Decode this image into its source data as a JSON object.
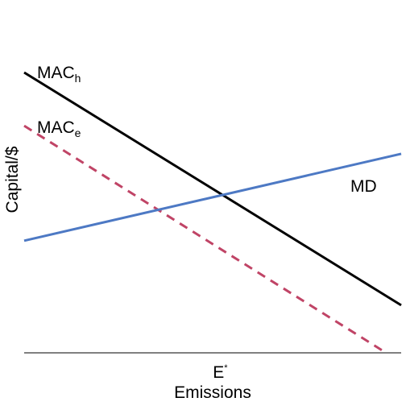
{
  "chart_data": {
    "type": "line",
    "xlabel": "Emissions",
    "ylabel": "Capital/$",
    "xlim": [
      0,
      100
    ],
    "ylim": [
      0,
      100
    ],
    "x_tick": {
      "base": "E",
      "sup": "*",
      "value": 52
    },
    "series": [
      {
        "base": "MAC",
        "sub": "h",
        "color": "#000000",
        "dashed": false,
        "x": [
          0,
          100
        ],
        "y": [
          100,
          17
        ]
      },
      {
        "base": "MAC",
        "sub": "e",
        "color": "#c04466",
        "dashed": true,
        "x": [
          0,
          96
        ],
        "y": [
          81,
          0
        ]
      },
      {
        "name": "MD",
        "color": "#4d79c4",
        "dashed": false,
        "x": [
          0,
          100
        ],
        "y": [
          40,
          71
        ]
      }
    ]
  }
}
